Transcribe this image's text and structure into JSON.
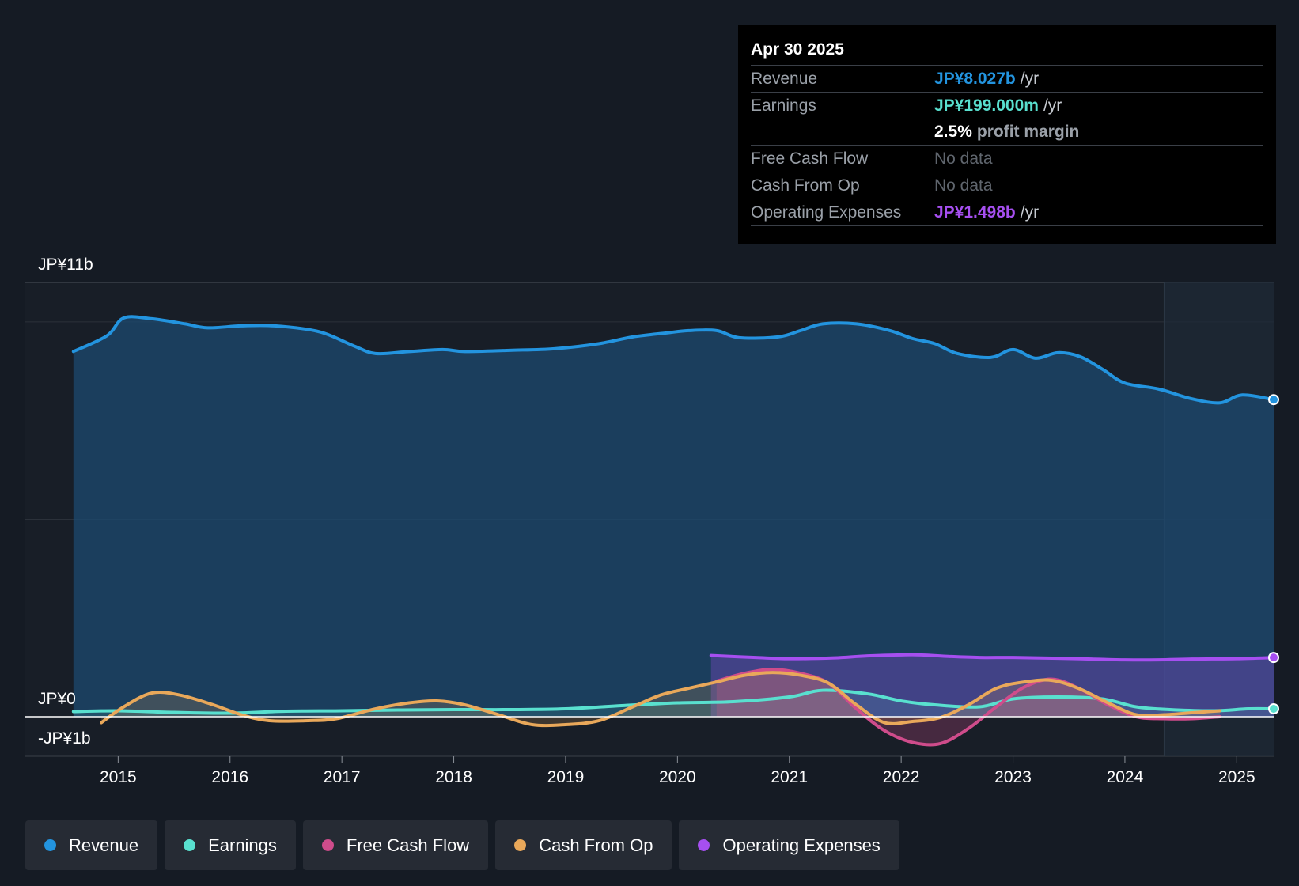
{
  "tooltip": {
    "date": "Apr 30 2025",
    "revenue_label": "Revenue",
    "revenue_value": "JP¥8.027b",
    "earnings_label": "Earnings",
    "earnings_value": "JP¥199.000m",
    "unit": "/yr",
    "margin_value": "2.5%",
    "margin_label": "profit margin",
    "fcf_label": "Free Cash Flow",
    "cfo_label": "Cash From Op",
    "no_data": "No data",
    "opex_label": "Operating Expenses",
    "opex_value": "JP¥1.498b"
  },
  "legend": {
    "revenue": "Revenue",
    "earnings": "Earnings",
    "fcf": "Free Cash Flow",
    "cfo": "Cash From Op",
    "opex": "Operating Expenses"
  },
  "colors": {
    "revenue": "#2394df",
    "earnings": "#59e0cf",
    "fcf": "#cf4c8b",
    "cfo": "#e9a85a",
    "opex": "#a64ff0"
  },
  "chart_data": {
    "type": "area",
    "y_top_label": "JP¥11b",
    "y_zero_label": "JP¥0",
    "y_bottom_label": "-JP¥1b",
    "ylim": [
      -1,
      11
    ],
    "xlim": [
      2014.17,
      2025.33
    ],
    "x_ticks": [
      2015,
      2016,
      2017,
      2018,
      2019,
      2020,
      2021,
      2022,
      2023,
      2024,
      2025
    ],
    "x_tick_labels": [
      "2015",
      "2016",
      "2017",
      "2018",
      "2019",
      "2020",
      "2021",
      "2022",
      "2023",
      "2024",
      "2025"
    ],
    "forecast_start": 2024.35,
    "series": [
      {
        "name": "Revenue",
        "key": "revenue",
        "x": [
          2014.6,
          2014.9,
          2015.05,
          2015.3,
          2015.6,
          2015.8,
          2016.1,
          2016.4,
          2016.8,
          2017.1,
          2017.3,
          2017.6,
          2017.9,
          2018.1,
          2018.5,
          2018.9,
          2019.3,
          2019.6,
          2019.9,
          2020.1,
          2020.35,
          2020.55,
          2020.9,
          2021.1,
          2021.3,
          2021.6,
          2021.9,
          2022.1,
          2022.3,
          2022.5,
          2022.8,
          2023.0,
          2023.2,
          2023.4,
          2023.6,
          2023.8,
          2024.0,
          2024.3,
          2024.6,
          2024.85,
          2025.05,
          2025.33
        ],
        "values": [
          9.25,
          9.65,
          10.1,
          10.08,
          9.95,
          9.85,
          9.9,
          9.9,
          9.75,
          9.4,
          9.2,
          9.25,
          9.3,
          9.25,
          9.28,
          9.32,
          9.45,
          9.62,
          9.72,
          9.78,
          9.78,
          9.6,
          9.62,
          9.78,
          9.95,
          9.95,
          9.78,
          9.58,
          9.45,
          9.2,
          9.1,
          9.3,
          9.08,
          9.22,
          9.12,
          8.8,
          8.45,
          8.3,
          8.05,
          7.95,
          8.15,
          8.03
        ]
      },
      {
        "name": "Earnings",
        "key": "earnings",
        "x": [
          2014.6,
          2015.0,
          2015.5,
          2016.0,
          2016.5,
          2017.0,
          2017.5,
          2018.0,
          2018.5,
          2019.0,
          2019.5,
          2020.0,
          2020.5,
          2021.0,
          2021.3,
          2021.7,
          2022.0,
          2022.3,
          2022.7,
          2023.0,
          2023.4,
          2023.8,
          2024.1,
          2024.4,
          2024.8,
          2025.1,
          2025.33
        ],
        "values": [
          0.13,
          0.15,
          0.11,
          0.09,
          0.14,
          0.15,
          0.17,
          0.18,
          0.18,
          0.2,
          0.28,
          0.35,
          0.38,
          0.5,
          0.67,
          0.58,
          0.4,
          0.3,
          0.25,
          0.45,
          0.5,
          0.45,
          0.25,
          0.18,
          0.15,
          0.2,
          0.2
        ]
      },
      {
        "name": "Free Cash Flow",
        "key": "fcf",
        "x": [
          2020.35,
          2020.6,
          2020.85,
          2021.1,
          2021.35,
          2021.6,
          2021.85,
          2022.1,
          2022.35,
          2022.6,
          2022.85,
          2023.1,
          2023.35,
          2023.6,
          2023.85,
          2024.1,
          2024.35,
          2024.6,
          2024.85
        ],
        "values": [
          0.9,
          1.1,
          1.2,
          1.1,
          0.85,
          0.2,
          -0.35,
          -0.65,
          -0.68,
          -0.3,
          0.25,
          0.75,
          0.95,
          0.7,
          0.3,
          0.0,
          -0.05,
          -0.05,
          0.0
        ]
      },
      {
        "name": "Cash From Op",
        "key": "cfo",
        "x": [
          2014.85,
          2015.05,
          2015.3,
          2015.55,
          2015.85,
          2016.1,
          2016.35,
          2016.7,
          2016.95,
          2017.3,
          2017.6,
          2017.85,
          2018.1,
          2018.4,
          2018.7,
          2019.0,
          2019.3,
          2019.6,
          2019.85,
          2020.1,
          2020.35,
          2020.6,
          2020.85,
          2021.1,
          2021.35,
          2021.6,
          2021.85,
          2022.1,
          2022.35,
          2022.6,
          2022.85,
          2023.1,
          2023.35,
          2023.6,
          2023.85,
          2024.1,
          2024.35,
          2024.6,
          2024.85
        ],
        "values": [
          -0.15,
          0.25,
          0.6,
          0.55,
          0.3,
          0.05,
          -0.1,
          -0.1,
          -0.05,
          0.2,
          0.35,
          0.4,
          0.3,
          0.05,
          -0.2,
          -0.2,
          -0.1,
          0.25,
          0.55,
          0.72,
          0.88,
          1.05,
          1.12,
          1.05,
          0.85,
          0.3,
          -0.15,
          -0.12,
          -0.02,
          0.3,
          0.72,
          0.88,
          0.92,
          0.7,
          0.35,
          0.05,
          0.05,
          0.1,
          0.15
        ]
      },
      {
        "name": "Operating Expenses",
        "key": "opex",
        "x": [
          2020.3,
          2020.7,
          2021.0,
          2021.4,
          2021.7,
          2022.1,
          2022.4,
          2022.7,
          2023.0,
          2023.4,
          2023.7,
          2024.0,
          2024.3,
          2024.6,
          2025.0,
          2025.33
        ],
        "values": [
          1.55,
          1.5,
          1.47,
          1.49,
          1.54,
          1.57,
          1.53,
          1.5,
          1.5,
          1.48,
          1.46,
          1.44,
          1.44,
          1.46,
          1.47,
          1.5
        ]
      }
    ]
  }
}
